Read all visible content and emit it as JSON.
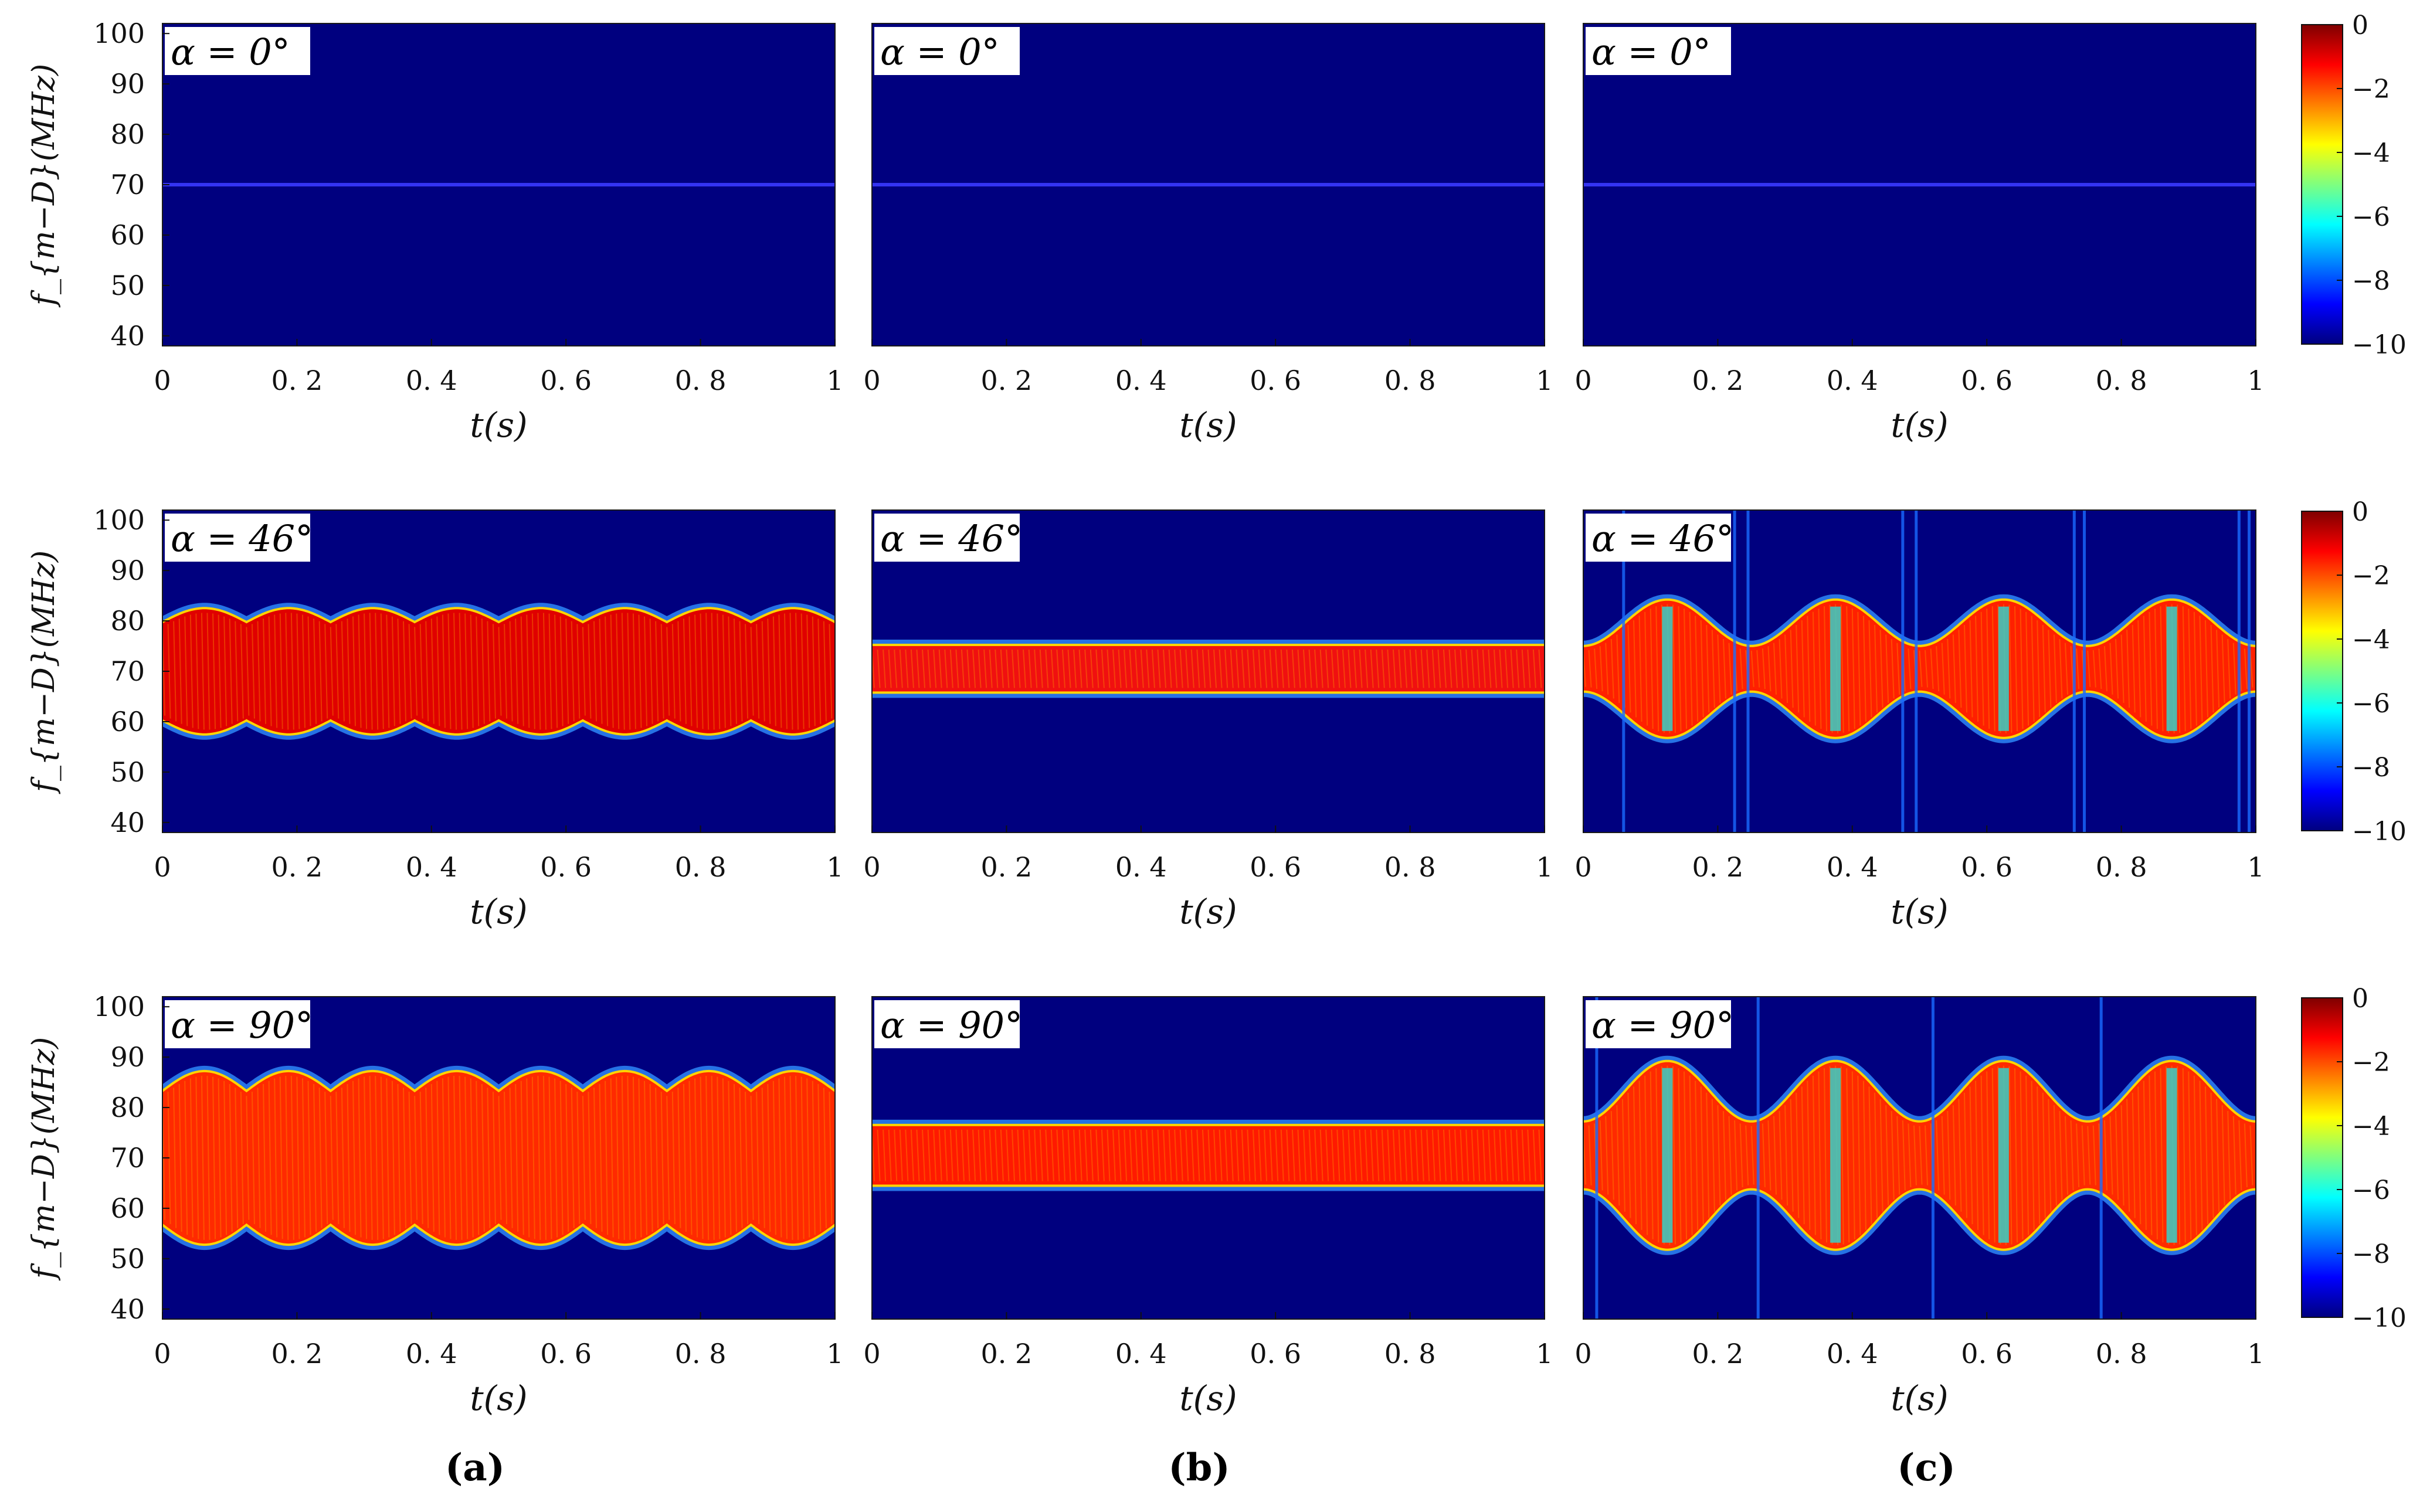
{
  "figure": {
    "panel_labels": [
      "(a)",
      "(b)",
      "(c)"
    ],
    "colors": {
      "background_blue": "#00007f",
      "colormap": [
        "#00007f",
        "#0000ff",
        "#007fff",
        "#00ffff",
        "#7fff7f",
        "#ffff00",
        "#ff7f00",
        "#ff0000",
        "#7f0000"
      ]
    }
  },
  "chart_data": [
    {
      "type": "heatmap",
      "row": 0,
      "col": 0,
      "annotation": "α = 0°",
      "xlabel": "t(s)",
      "ylabel": "f_{m−D}(MHz)",
      "xlim": [
        0,
        1
      ],
      "ylim": [
        38,
        102
      ],
      "xticks": [
        "0",
        "0. 2",
        "0. 4",
        "0. 6",
        "0. 8",
        "1"
      ],
      "yticks": [
        40,
        50,
        60,
        70,
        80,
        90,
        100
      ],
      "band": {
        "kind": "line",
        "center": 70,
        "level": -9
      }
    },
    {
      "type": "heatmap",
      "row": 0,
      "col": 1,
      "annotation": "α = 0°",
      "xlabel": "t(s)",
      "xlim": [
        0,
        1
      ],
      "ylim": [
        38,
        102
      ],
      "xticks": [
        "0",
        "0. 2",
        "0. 4",
        "0. 6",
        "0. 8",
        "1"
      ],
      "band": {
        "kind": "line",
        "center": 70,
        "level": -9
      }
    },
    {
      "type": "heatmap",
      "row": 0,
      "col": 2,
      "annotation": "α = 0°",
      "xlabel": "t(s)",
      "xlim": [
        0,
        1
      ],
      "ylim": [
        38,
        102
      ],
      "xticks": [
        "0",
        "0. 2",
        "0. 4",
        "0. 6",
        "0. 8",
        "1"
      ],
      "band": {
        "kind": "line",
        "center": 70,
        "level": -9
      }
    },
    {
      "type": "heatmap",
      "row": 1,
      "col": 0,
      "annotation": "α = 46°",
      "xlabel": "t(s)",
      "ylabel": "f_{m−D}(MHz)",
      "xlim": [
        0,
        1
      ],
      "ylim": [
        38,
        102
      ],
      "xticks": [
        "0",
        "0. 2",
        "0. 4",
        "0. 6",
        "0. 8",
        "1"
      ],
      "yticks": [
        40,
        50,
        60,
        70,
        80,
        90,
        100
      ],
      "band": {
        "kind": "scallop",
        "center": 70,
        "base": 9.5,
        "amp": 2.8,
        "period": 0.125,
        "phase": 0.0,
        "fill": "#e00000"
      }
    },
    {
      "type": "heatmap",
      "row": 1,
      "col": 1,
      "annotation": "α = 46°",
      "xlabel": "t(s)",
      "xlim": [
        0,
        1
      ],
      "ylim": [
        38,
        102
      ],
      "xticks": [
        "0",
        "0. 2",
        "0. 4",
        "0. 6",
        "0. 8",
        "1"
      ],
      "band": {
        "kind": "flat",
        "center": 70.5,
        "half": 4.5,
        "fill": "#f01010"
      }
    },
    {
      "type": "heatmap",
      "row": 1,
      "col": 2,
      "annotation": "α = 46°",
      "xlabel": "t(s)",
      "xlim": [
        0,
        1
      ],
      "ylim": [
        38,
        102
      ],
      "xticks": [
        "0",
        "0. 2",
        "0. 4",
        "0. 6",
        "0. 8",
        "1"
      ],
      "band": {
        "kind": "lobes",
        "center": 70.5,
        "min_half": 4.3,
        "max_half": 13.5,
        "peaks": [
          0.125,
          0.375,
          0.625,
          0.875
        ],
        "fill": "#ff2000"
      },
      "spikes": [
        0.06,
        0.225,
        0.245,
        0.475,
        0.495,
        0.73,
        0.745,
        0.975,
        0.99
      ]
    },
    {
      "type": "heatmap",
      "row": 2,
      "col": 0,
      "annotation": "α = 90°",
      "xlabel": "t(s)",
      "ylabel": "f_{m−D}(MHz)",
      "xlim": [
        0,
        1
      ],
      "ylim": [
        38,
        102
      ],
      "xticks": [
        "0",
        "0. 2",
        "0. 4",
        "0. 6",
        "0. 8",
        "1"
      ],
      "yticks": [
        40,
        50,
        60,
        70,
        80,
        90,
        100
      ],
      "band": {
        "kind": "scallop",
        "center": 70,
        "base": 13,
        "amp": 4,
        "period": 0.125,
        "phase": 0.0,
        "fill": "#ff2a00"
      }
    },
    {
      "type": "heatmap",
      "row": 2,
      "col": 1,
      "annotation": "α = 90°",
      "xlabel": "t(s)",
      "xlim": [
        0,
        1
      ],
      "ylim": [
        38,
        102
      ],
      "xticks": [
        "0",
        "0. 2",
        "0. 4",
        "0. 6",
        "0. 8",
        "1"
      ],
      "band": {
        "kind": "flat",
        "center": 70.5,
        "half": 5.8,
        "fill": "#ff1a00"
      }
    },
    {
      "type": "heatmap",
      "row": 2,
      "col": 2,
      "annotation": "α = 90°",
      "xlabel": "t(s)",
      "xlim": [
        0,
        1
      ],
      "ylim": [
        38,
        102
      ],
      "xticks": [
        "0",
        "0. 2",
        "0. 4",
        "0. 6",
        "0. 8",
        "1"
      ],
      "band": {
        "kind": "lobes",
        "center": 70.5,
        "min_half": 6.5,
        "max_half": 18.5,
        "peaks": [
          0.125,
          0.375,
          0.625,
          0.875
        ],
        "fill": "#ff2a00"
      },
      "spikes": [
        0.02,
        0.26,
        0.52,
        0.77
      ]
    }
  ],
  "colorbars": [
    {
      "row": 0,
      "ticks": [
        "0",
        "−2",
        "−4",
        "−6",
        "−8",
        "−10"
      ]
    },
    {
      "row": 1,
      "ticks": [
        "0",
        "−2",
        "−4",
        "−6",
        "−8",
        "−10"
      ]
    },
    {
      "row": 2,
      "ticks": [
        "0",
        "−2",
        "−4",
        "−6",
        "−8",
        "−10"
      ]
    }
  ]
}
